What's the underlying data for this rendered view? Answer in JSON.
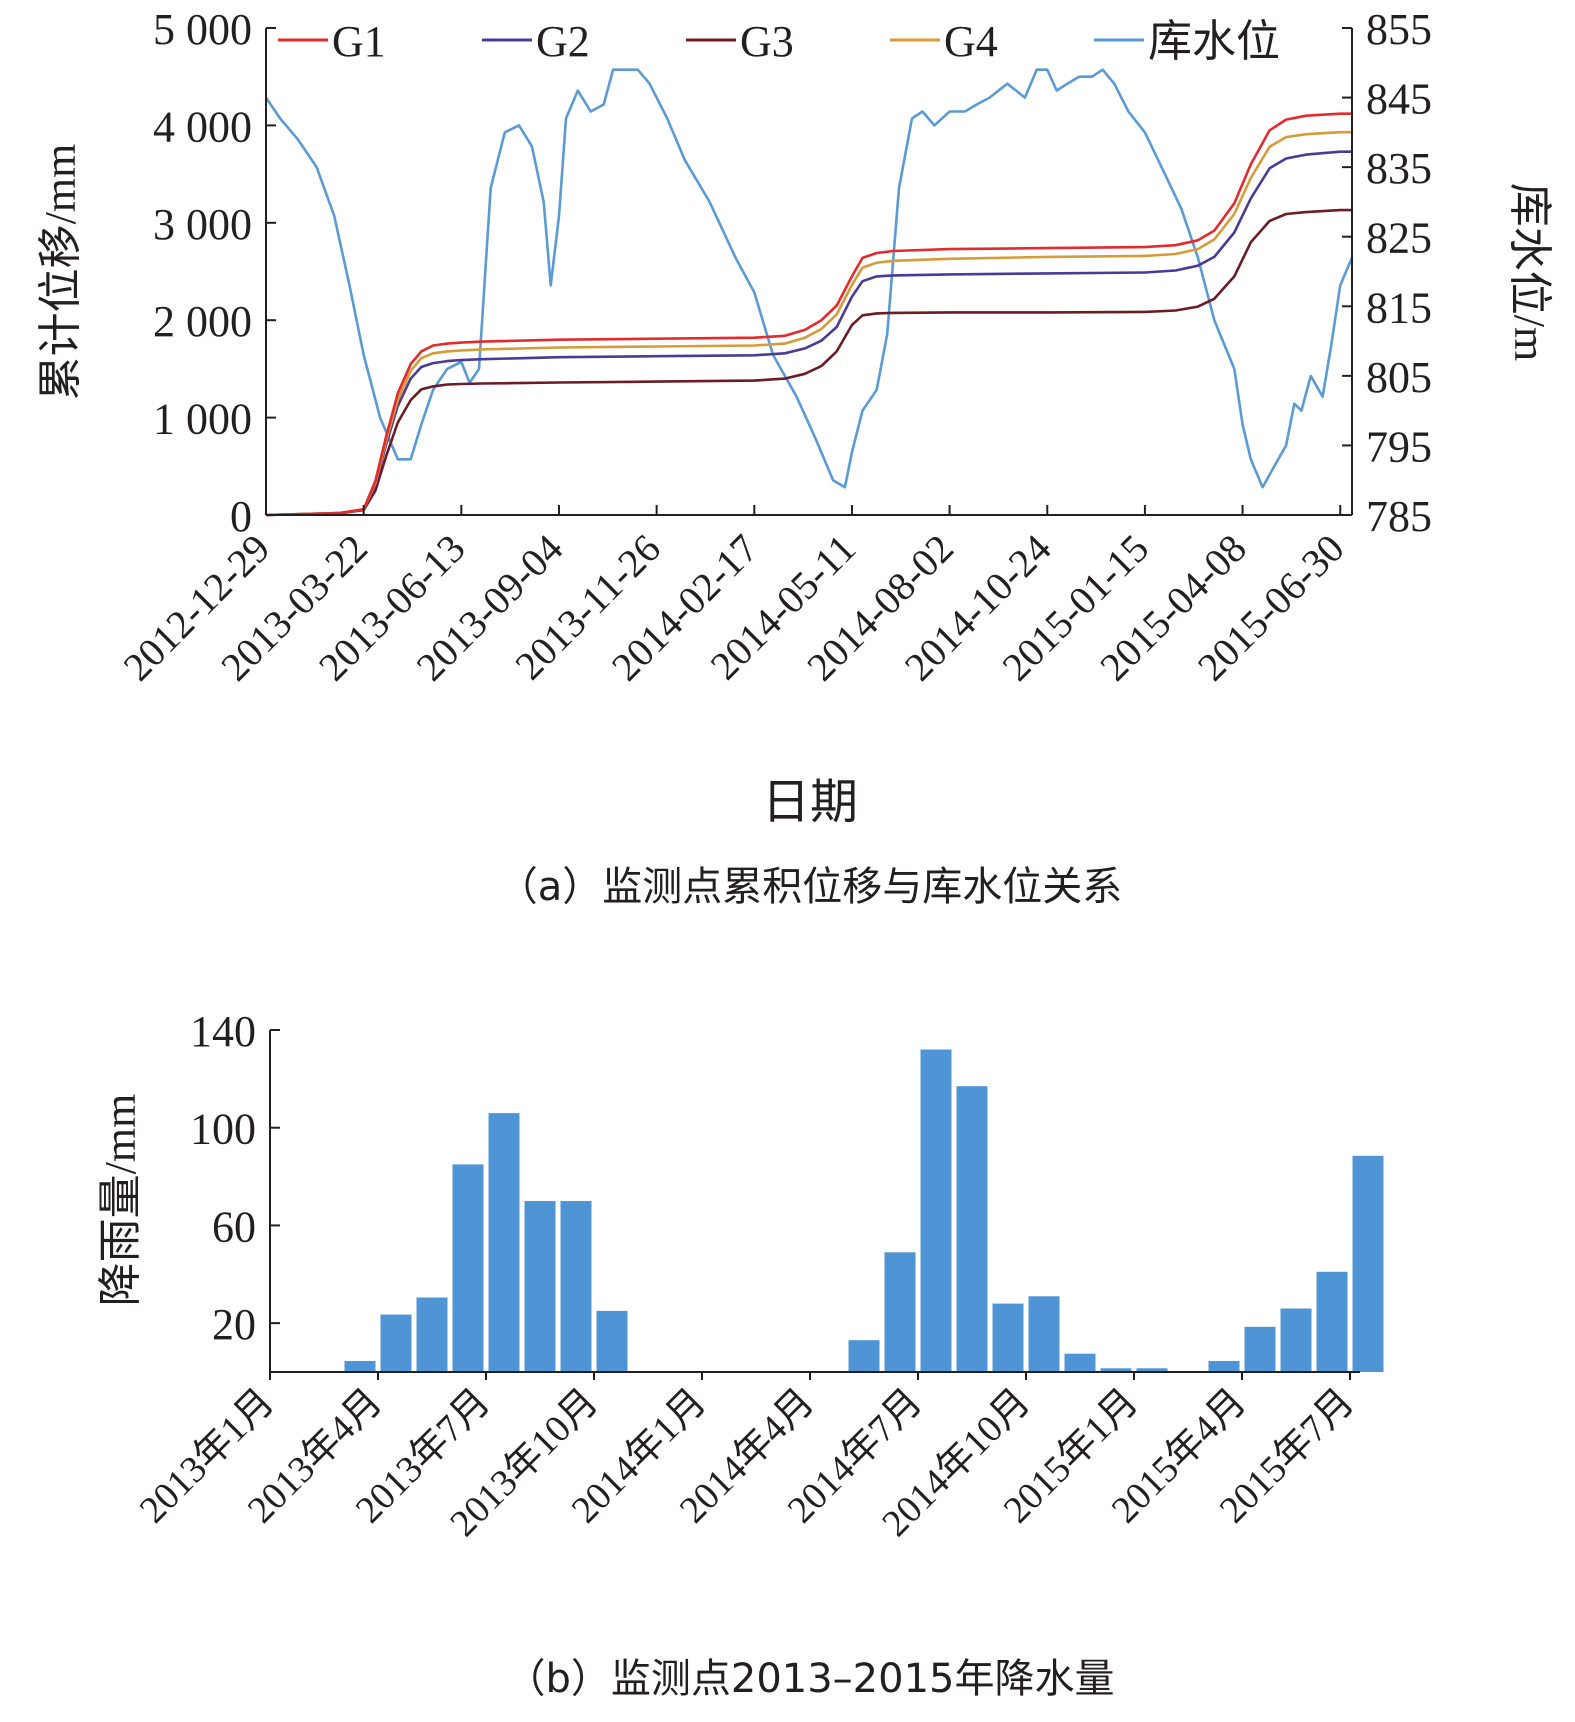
{
  "chart_data": [
    {
      "type": "line",
      "caption": "（a）监测点累积位移与库水位关系",
      "xlabel": "日期",
      "ylabel": "累计位移/mm",
      "y2label": "库水位/m",
      "ylim": [
        0,
        5000
      ],
      "y2lim": [
        785,
        855
      ],
      "yticks": [
        "0",
        "1 000",
        "2 000",
        "3 000",
        "4 000",
        "5 000"
      ],
      "y2ticks": [
        "785",
        "795",
        "805",
        "815",
        "825",
        "835",
        "845",
        "855"
      ],
      "xticks": [
        "2012-12-29",
        "2013-03-22",
        "2013-06-13",
        "2013-09-04",
        "2013-11-26",
        "2014-02-17",
        "2014-05-11",
        "2014-08-02",
        "2014-10-24",
        "2015-01-15",
        "2015-04-08",
        "2015-06-30"
      ],
      "xlim": [
        "2012-12-29",
        "2015-07-10"
      ],
      "legend_position": "top",
      "series": [
        {
          "name": "G1",
          "axis": "left",
          "color": "#e32b2e",
          "x": [
            "2012-12-29",
            "2013-03-01",
            "2013-03-22",
            "2013-04-01",
            "2013-04-10",
            "2013-04-20",
            "2013-05-01",
            "2013-05-10",
            "2013-05-20",
            "2013-06-01",
            "2013-06-13",
            "2013-07-01",
            "2013-09-04",
            "2013-11-26",
            "2014-02-17",
            "2014-03-15",
            "2014-04-01",
            "2014-04-15",
            "2014-04-28",
            "2014-05-11",
            "2014-05-20",
            "2014-06-01",
            "2014-06-15",
            "2014-08-02",
            "2014-10-24",
            "2015-01-15",
            "2015-02-10",
            "2015-03-01",
            "2015-03-15",
            "2015-04-01",
            "2015-04-15",
            "2015-05-01",
            "2015-05-15",
            "2015-06-01",
            "2015-06-30",
            "2015-07-10"
          ],
          "values": [
            0,
            20,
            60,
            350,
            800,
            1250,
            1550,
            1680,
            1740,
            1760,
            1770,
            1780,
            1800,
            1810,
            1820,
            1840,
            1900,
            2000,
            2150,
            2450,
            2640,
            2690,
            2710,
            2730,
            2740,
            2750,
            2770,
            2820,
            2920,
            3200,
            3600,
            3950,
            4060,
            4100,
            4120,
            4120
          ]
        },
        {
          "name": "G2",
          "axis": "left",
          "color": "#4b3a97",
          "x": [
            "2012-12-29",
            "2013-03-01",
            "2013-03-22",
            "2013-04-01",
            "2013-04-10",
            "2013-04-20",
            "2013-05-01",
            "2013-05-10",
            "2013-05-20",
            "2013-06-01",
            "2013-06-13",
            "2013-07-01",
            "2013-09-04",
            "2013-11-26",
            "2014-02-17",
            "2014-03-15",
            "2014-04-01",
            "2014-04-15",
            "2014-04-28",
            "2014-05-11",
            "2014-05-20",
            "2014-06-01",
            "2014-06-15",
            "2014-08-02",
            "2014-10-24",
            "2015-01-15",
            "2015-02-10",
            "2015-03-01",
            "2015-03-15",
            "2015-04-01",
            "2015-04-15",
            "2015-05-01",
            "2015-05-15",
            "2015-06-01",
            "2015-06-30",
            "2015-07-10"
          ],
          "values": [
            0,
            20,
            55,
            310,
            720,
            1120,
            1400,
            1520,
            1560,
            1580,
            1590,
            1600,
            1620,
            1630,
            1640,
            1660,
            1710,
            1790,
            1930,
            2240,
            2400,
            2450,
            2460,
            2470,
            2480,
            2490,
            2510,
            2560,
            2650,
            2900,
            3250,
            3560,
            3660,
            3700,
            3730,
            3730
          ]
        },
        {
          "name": "G3",
          "axis": "left",
          "color": "#6b1c24",
          "x": [
            "2012-12-29",
            "2013-03-01",
            "2013-03-22",
            "2013-04-01",
            "2013-04-10",
            "2013-04-20",
            "2013-05-01",
            "2013-05-10",
            "2013-05-20",
            "2013-06-01",
            "2013-06-13",
            "2013-07-01",
            "2013-09-04",
            "2013-11-26",
            "2014-02-17",
            "2014-03-15",
            "2014-04-01",
            "2014-04-15",
            "2014-04-28",
            "2014-05-11",
            "2014-05-20",
            "2014-06-01",
            "2014-06-15",
            "2014-08-02",
            "2014-10-24",
            "2015-01-15",
            "2015-02-10",
            "2015-03-01",
            "2015-03-15",
            "2015-04-01",
            "2015-04-15",
            "2015-05-01",
            "2015-05-15",
            "2015-06-01",
            "2015-06-30",
            "2015-07-10"
          ],
          "values": [
            0,
            15,
            50,
            250,
            600,
            950,
            1180,
            1290,
            1320,
            1340,
            1345,
            1350,
            1360,
            1370,
            1380,
            1400,
            1450,
            1530,
            1680,
            1950,
            2050,
            2070,
            2075,
            2080,
            2080,
            2085,
            2100,
            2140,
            2220,
            2450,
            2800,
            3020,
            3090,
            3110,
            3130,
            3130
          ]
        },
        {
          "name": "G4",
          "axis": "left",
          "color": "#d69c3a",
          "x": [
            "2012-12-29",
            "2013-03-01",
            "2013-03-22",
            "2013-04-01",
            "2013-04-10",
            "2013-04-20",
            "2013-05-01",
            "2013-05-10",
            "2013-05-20",
            "2013-06-01",
            "2013-06-13",
            "2013-07-01",
            "2013-09-04",
            "2013-11-26",
            "2014-02-17",
            "2014-03-15",
            "2014-04-01",
            "2014-04-15",
            "2014-04-28",
            "2014-05-11",
            "2014-05-20",
            "2014-06-01",
            "2014-06-15",
            "2014-08-02",
            "2014-10-24",
            "2015-01-15",
            "2015-02-10",
            "2015-03-01",
            "2015-03-15",
            "2015-04-01",
            "2015-04-15",
            "2015-05-01",
            "2015-05-15",
            "2015-06-01",
            "2015-06-30",
            "2015-07-10"
          ],
          "values": [
            0,
            20,
            58,
            330,
            760,
            1180,
            1480,
            1610,
            1660,
            1680,
            1690,
            1700,
            1720,
            1730,
            1740,
            1760,
            1820,
            1910,
            2060,
            2360,
            2540,
            2590,
            2610,
            2630,
            2650,
            2660,
            2680,
            2730,
            2830,
            3090,
            3460,
            3780,
            3880,
            3910,
            3930,
            3930
          ]
        },
        {
          "name": "库水位",
          "axis": "right",
          "color": "#5b9bd5",
          "x": [
            "2012-12-29",
            "2013-01-10",
            "2013-01-25",
            "2013-02-10",
            "2013-02-25",
            "2013-03-10",
            "2013-03-22",
            "2013-04-05",
            "2013-04-20",
            "2013-05-01",
            "2013-05-10",
            "2013-05-20",
            "2013-06-01",
            "2013-06-13",
            "2013-06-20",
            "2013-06-28",
            "2013-07-08",
            "2013-07-20",
            "2013-08-01",
            "2013-08-12",
            "2013-08-22",
            "2013-08-28",
            "2013-09-04",
            "2013-09-10",
            "2013-09-20",
            "2013-10-01",
            "2013-10-12",
            "2013-10-20",
            "2013-11-01",
            "2013-11-10",
            "2013-11-20",
            "2013-11-26",
            "2013-12-05",
            "2013-12-20",
            "2014-01-10",
            "2014-02-01",
            "2014-02-17",
            "2014-03-05",
            "2014-03-25",
            "2014-04-10",
            "2014-04-25",
            "2014-05-05",
            "2014-05-11",
            "2014-05-20",
            "2014-06-01",
            "2014-06-10",
            "2014-06-20",
            "2014-07-01",
            "2014-07-10",
            "2014-07-20",
            "2014-08-02",
            "2014-08-15",
            "2014-08-25",
            "2014-09-05",
            "2014-09-20",
            "2014-10-05",
            "2014-10-15",
            "2014-10-24",
            "2014-11-01",
            "2014-11-10",
            "2014-11-20",
            "2014-12-01",
            "2014-12-10",
            "2014-12-20",
            "2015-01-01",
            "2015-01-15",
            "2015-02-01",
            "2015-02-15",
            "2015-03-01",
            "2015-03-15",
            "2015-04-01",
            "2015-04-08",
            "2015-04-15",
            "2015-04-25",
            "2015-05-05",
            "2015-05-15",
            "2015-05-22",
            "2015-05-28",
            "2015-06-05",
            "2015-06-15",
            "2015-06-22",
            "2015-06-30",
            "2015-07-10"
          ],
          "values": [
            845,
            842,
            839,
            835,
            828,
            818,
            808,
            799,
            793,
            793,
            798,
            803,
            806,
            807,
            804,
            806,
            832,
            840,
            841,
            838,
            830,
            818,
            828,
            842,
            846,
            843,
            844,
            849,
            849,
            849,
            847,
            845,
            842,
            836,
            830,
            822,
            817,
            808,
            802,
            796,
            790,
            789,
            794,
            800,
            803,
            811,
            832,
            842,
            843,
            841,
            843,
            843,
            844,
            845,
            847,
            845,
            849,
            849,
            846,
            847,
            848,
            848,
            849,
            847,
            843,
            840,
            834,
            829,
            822,
            813,
            806,
            798,
            793,
            789,
            792,
            795,
            801,
            800,
            805,
            802,
            809,
            818,
            822
          ]
        }
      ]
    },
    {
      "type": "bar",
      "caption": "（b）监测点2013–2015年降水量",
      "ylabel": "降雨量/mm",
      "ylim": [
        0,
        140
      ],
      "yticks": [
        "20",
        "60",
        "100",
        "140"
      ],
      "xticks": [
        "2013年1月",
        "2013年4月",
        "2013年7月",
        "2013年10月",
        "2014年1月",
        "2014年4月",
        "2014年7月",
        "2014年10月",
        "2015年1月",
        "2015年4月",
        "2015年7月"
      ],
      "color": "#4f95d6",
      "categories": [
        "2013-01",
        "2013-02",
        "2013-03",
        "2013-04",
        "2013-05",
        "2013-06",
        "2013-07",
        "2013-08",
        "2013-09",
        "2013-10",
        "2013-11",
        "2013-12",
        "2014-01",
        "2014-02",
        "2014-03",
        "2014-04",
        "2014-05",
        "2014-06",
        "2014-07",
        "2014-08",
        "2014-09",
        "2014-10",
        "2014-11",
        "2014-12",
        "2015-01",
        "2015-02",
        "2015-03",
        "2015-04",
        "2015-05",
        "2015-06",
        "2015-07"
      ],
      "values": [
        0,
        0,
        4.5,
        23.5,
        30.5,
        85,
        106,
        70,
        70,
        25,
        0,
        0,
        0,
        0,
        0,
        0,
        13,
        49,
        132,
        117,
        28,
        31,
        7.5,
        1.5,
        1.5,
        0,
        4.5,
        18.5,
        26,
        41,
        88.5
      ]
    }
  ]
}
